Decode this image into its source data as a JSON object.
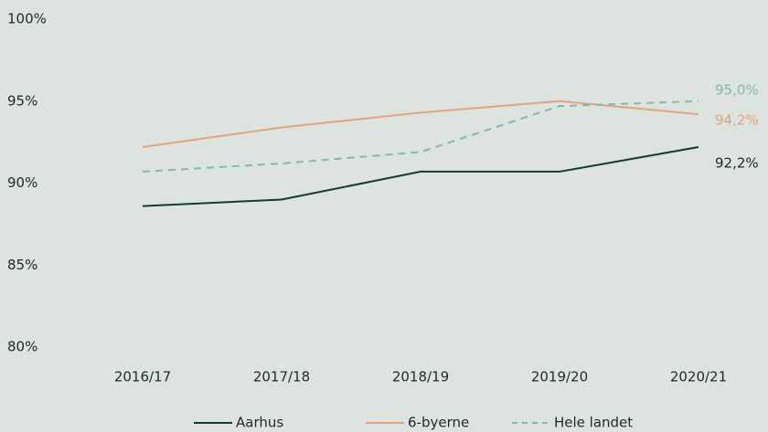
{
  "chart_data": {
    "type": "line",
    "categories": [
      "2016/17",
      "2017/18",
      "2018/19",
      "2019/20",
      "2020/21"
    ],
    "series": [
      {
        "name": "Aarhus",
        "color": "#0f3d35",
        "dash": false,
        "values": [
          88.6,
          89.0,
          90.7,
          90.7,
          92.2
        ],
        "value_labels": [
          null,
          null,
          null,
          null,
          "92,2%"
        ]
      },
      {
        "name": "6-byerne",
        "color": "#e0a47e",
        "dash": false,
        "values": [
          92.2,
          93.4,
          94.3,
          95.0,
          94.2
        ],
        "value_labels": [
          null,
          null,
          null,
          null,
          "94,2%"
        ]
      },
      {
        "name": "Hele landet",
        "color": "#86b8ad",
        "dash": true,
        "values": [
          90.7,
          91.2,
          91.9,
          94.7,
          95.0
        ],
        "value_labels": [
          null,
          null,
          null,
          null,
          "95,0%"
        ]
      }
    ],
    "ylim": [
      80,
      100
    ],
    "yticks": [
      {
        "value": 80,
        "label": "80%"
      },
      {
        "value": 85,
        "label": "85%"
      },
      {
        "value": 90,
        "label": "90%"
      },
      {
        "value": 95,
        "label": "95%"
      },
      {
        "value": 100,
        "label": "100%"
      }
    ],
    "grid": false,
    "legend": "bottom"
  }
}
